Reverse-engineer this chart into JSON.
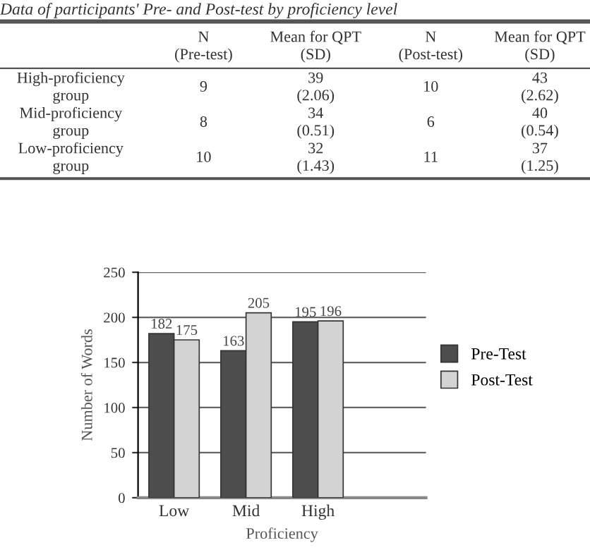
{
  "chart_data": [
    {
      "type": "other",
      "title": "Data of participants' Pre- and Post-test by proficiency level",
      "categories": [
        null,
        "N\n(Pre-test)",
        "Mean for QPT\n(SD)",
        "N\n(Post-test)",
        "Mean for QPT\n(SD)"
      ],
      "y_categories": [
        "High-proficiency\ngroup",
        "Mid-proficiency\ngroup",
        "Low-proficiency\ngroup"
      ],
      "cell_labels": [
        [
          "9",
          "39\n(2.06)",
          "10",
          "43\n(2.62)"
        ],
        [
          "8",
          "34\n(0.51)",
          "6",
          "40\n(0.54)"
        ],
        [
          "10",
          "32\n(1.43)",
          "11",
          "37\n(1.25)"
        ]
      ]
    },
    {
      "type": "bar",
      "xlabel": "Proficiency",
      "ylabel": "Number of Words",
      "categories": [
        "Low",
        "Mid",
        "High"
      ],
      "series": [
        {
          "name": "Pre-Test",
          "color": "#4d4d4d",
          "values": [
            182,
            163,
            195
          ]
        },
        {
          "name": "Post-Test",
          "color": "#d3d3d3",
          "values": [
            175,
            205,
            196
          ]
        }
      ],
      "ylim": [
        0,
        250
      ],
      "yticks": [
        0,
        50,
        100,
        150,
        200,
        250
      ],
      "grid": "y",
      "legend": "right",
      "data_labels": true
    }
  ]
}
